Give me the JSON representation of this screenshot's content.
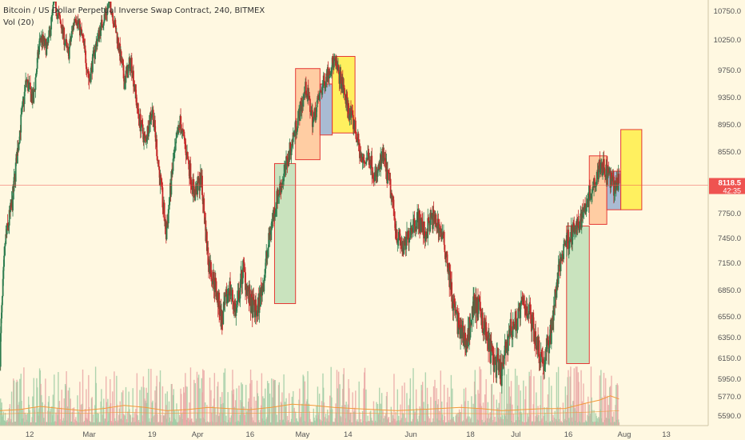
{
  "header": {
    "symbol_line": "Bitcoin / US Dollar Perpetual Inverse Swap Contract, 240, BITMEX",
    "volume_line": "Vol (20)"
  },
  "colors": {
    "background": "#fff8e1",
    "up": "#2e7d4f",
    "down": "#c62828",
    "volume_up": "#9ccaa3",
    "volume_down": "#e8a3a3",
    "volume_ma": "#f39a3a",
    "price_line": "#ef5350",
    "axis_text": "#555555",
    "box_green": "#a5d6a7",
    "box_orange": "#ffb07a",
    "box_blue": "#6f93c9",
    "box_yellow": "#ffee33"
  },
  "chart_data": {
    "type": "candlestick",
    "title": "Bitcoin / US Dollar Perpetual Inverse Swap Contract, 240, BITMEX",
    "indicator": "Vol (20)",
    "y_axis_ticks": [
      "10750.0",
      "10250.0",
      "9750.0",
      "9350.0",
      "8950.0",
      "8550.0",
      "8118.5",
      "7750.0",
      "7450.0",
      "7150.0",
      "6850.0",
      "6550.0",
      "6350.0",
      "6150.0",
      "5950.0",
      "5770.0",
      "5590.0"
    ],
    "y_axis_tick_values": [
      10750,
      10250,
      9750,
      9350,
      8950,
      8550,
      8118.5,
      7750,
      7450,
      7150,
      6850,
      6550,
      6350,
      6150,
      5950,
      5770,
      5590
    ],
    "x_axis_ticks": [
      "12",
      "Mar",
      "19",
      "Apr",
      "16",
      "May",
      "14",
      "Jun",
      "18",
      "Jul",
      "16",
      "Aug",
      "13"
    ],
    "x_axis_tick_days": [
      43,
      60,
      78,
      91,
      106,
      121,
      134,
      152,
      169,
      182,
      197,
      213,
      225
    ],
    "ylim": [
      5530,
      10900
    ],
    "xlim": [
      34.5,
      237
    ],
    "last_price": {
      "value": 8118.5,
      "label": "8118.5",
      "countdown": "42:35"
    },
    "price_path": [
      [
        34.5,
        6200
      ],
      [
        36,
        7400
      ],
      [
        38,
        7900
      ],
      [
        40,
        8800
      ],
      [
        42,
        9600
      ],
      [
        44,
        9300
      ],
      [
        46,
        10300
      ],
      [
        48,
        10100
      ],
      [
        50,
        10900
      ],
      [
        52,
        10500
      ],
      [
        54,
        10000
      ],
      [
        56,
        10700
      ],
      [
        58,
        10300
      ],
      [
        60,
        9600
      ],
      [
        62,
        10200
      ],
      [
        64,
        10600
      ],
      [
        66,
        10900
      ],
      [
        68,
        10300
      ],
      [
        70,
        9600
      ],
      [
        72,
        9900
      ],
      [
        74,
        9100
      ],
      [
        76,
        8700
      ],
      [
        78,
        9200
      ],
      [
        80,
        8300
      ],
      [
        82,
        7500
      ],
      [
        84,
        8400
      ],
      [
        86,
        9000
      ],
      [
        88,
        8500
      ],
      [
        90,
        8000
      ],
      [
        92,
        8200
      ],
      [
        94,
        7200
      ],
      [
        96,
        6900
      ],
      [
        98,
        6500
      ],
      [
        100,
        6900
      ],
      [
        102,
        6600
      ],
      [
        104,
        7100
      ],
      [
        106,
        6700
      ],
      [
        108,
        6600
      ],
      [
        110,
        7000
      ],
      [
        112,
        7600
      ],
      [
        114,
        8000
      ],
      [
        116,
        8300
      ],
      [
        118,
        8700
      ],
      [
        120,
        9100
      ],
      [
        122,
        9500
      ],
      [
        124,
        9000
      ],
      [
        126,
        9400
      ],
      [
        128,
        9700
      ],
      [
        130,
        9900
      ],
      [
        132,
        9600
      ],
      [
        134,
        9200
      ],
      [
        136,
        8900
      ],
      [
        138,
        8400
      ],
      [
        140,
        8500
      ],
      [
        142,
        8200
      ],
      [
        144,
        8500
      ],
      [
        146,
        8100
      ],
      [
        148,
        7500
      ],
      [
        150,
        7300
      ],
      [
        152,
        7600
      ],
      [
        154,
        7700
      ],
      [
        156,
        7500
      ],
      [
        158,
        7700
      ],
      [
        160,
        7600
      ],
      [
        162,
        7300
      ],
      [
        164,
        6700
      ],
      [
        166,
        6400
      ],
      [
        168,
        6300
      ],
      [
        170,
        6700
      ],
      [
        172,
        6600
      ],
      [
        174,
        6300
      ],
      [
        176,
        6100
      ],
      [
        178,
        6000
      ],
      [
        180,
        6400
      ],
      [
        182,
        6500
      ],
      [
        184,
        6700
      ],
      [
        186,
        6600
      ],
      [
        188,
        6300
      ],
      [
        190,
        6100
      ],
      [
        192,
        6400
      ],
      [
        194,
        7000
      ],
      [
        196,
        7400
      ],
      [
        198,
        7500
      ],
      [
        200,
        7600
      ],
      [
        202,
        7900
      ],
      [
        204,
        8100
      ],
      [
        206,
        8400
      ],
      [
        208,
        8300
      ],
      [
        210,
        8100
      ],
      [
        211.5,
        8150
      ]
    ],
    "volume_ma_path": [
      [
        34.5,
        5640
      ],
      [
        40,
        5650
      ],
      [
        46,
        5680
      ],
      [
        52,
        5660
      ],
      [
        58,
        5640
      ],
      [
        64,
        5660
      ],
      [
        70,
        5690
      ],
      [
        76,
        5670
      ],
      [
        82,
        5640
      ],
      [
        88,
        5650
      ],
      [
        94,
        5670
      ],
      [
        100,
        5660
      ],
      [
        106,
        5650
      ],
      [
        112,
        5670
      ],
      [
        118,
        5700
      ],
      [
        124,
        5690
      ],
      [
        130,
        5670
      ],
      [
        136,
        5660
      ],
      [
        142,
        5650
      ],
      [
        148,
        5640
      ],
      [
        154,
        5650
      ],
      [
        160,
        5660
      ],
      [
        166,
        5670
      ],
      [
        172,
        5660
      ],
      [
        178,
        5640
      ],
      [
        184,
        5650
      ],
      [
        190,
        5660
      ],
      [
        196,
        5660
      ],
      [
        202,
        5710
      ],
      [
        206,
        5740
      ],
      [
        209,
        5780
      ],
      [
        211.5,
        5750
      ]
    ],
    "volume_ma2_path": [
      [
        34.5,
        5610
      ],
      [
        46,
        5620
      ],
      [
        58,
        5615
      ],
      [
        70,
        5625
      ],
      [
        82,
        5615
      ],
      [
        94,
        5620
      ],
      [
        106,
        5615
      ],
      [
        118,
        5625
      ],
      [
        130,
        5620
      ],
      [
        142,
        5615
      ],
      [
        154,
        5612
      ],
      [
        166,
        5615
      ],
      [
        178,
        5610
      ],
      [
        190,
        5615
      ],
      [
        202,
        5625
      ],
      [
        211.5,
        5640
      ]
    ],
    "boxes": [
      {
        "name": "green-box-april",
        "color": "green",
        "x0": 113,
        "x1": 119,
        "y0": 6700,
        "y1": 8400
      },
      {
        "name": "orange-box-april",
        "color": "orange",
        "x0": 119,
        "x1": 126,
        "y0": 8450,
        "y1": 9780
      },
      {
        "name": "blue-box-april",
        "color": "blue",
        "x0": 126,
        "x1": 129.5,
        "y0": 8800,
        "y1": 9550
      },
      {
        "name": "yellow-box-may",
        "color": "yellow",
        "x0": 129.5,
        "x1": 136,
        "y0": 8830,
        "y1": 9980
      },
      {
        "name": "green-box-july",
        "color": "green",
        "x0": 196.5,
        "x1": 203,
        "y0": 6100,
        "y1": 7600
      },
      {
        "name": "orange-box-july",
        "color": "orange",
        "x0": 203,
        "x1": 208,
        "y0": 7620,
        "y1": 8500
      },
      {
        "name": "blue-box-july",
        "color": "blue",
        "x0": 208,
        "x1": 212,
        "y0": 7800,
        "y1": 8300
      },
      {
        "name": "yellow-box-august",
        "color": "yellow",
        "x0": 212,
        "x1": 218,
        "y0": 7800,
        "y1": 8880
      }
    ]
  }
}
